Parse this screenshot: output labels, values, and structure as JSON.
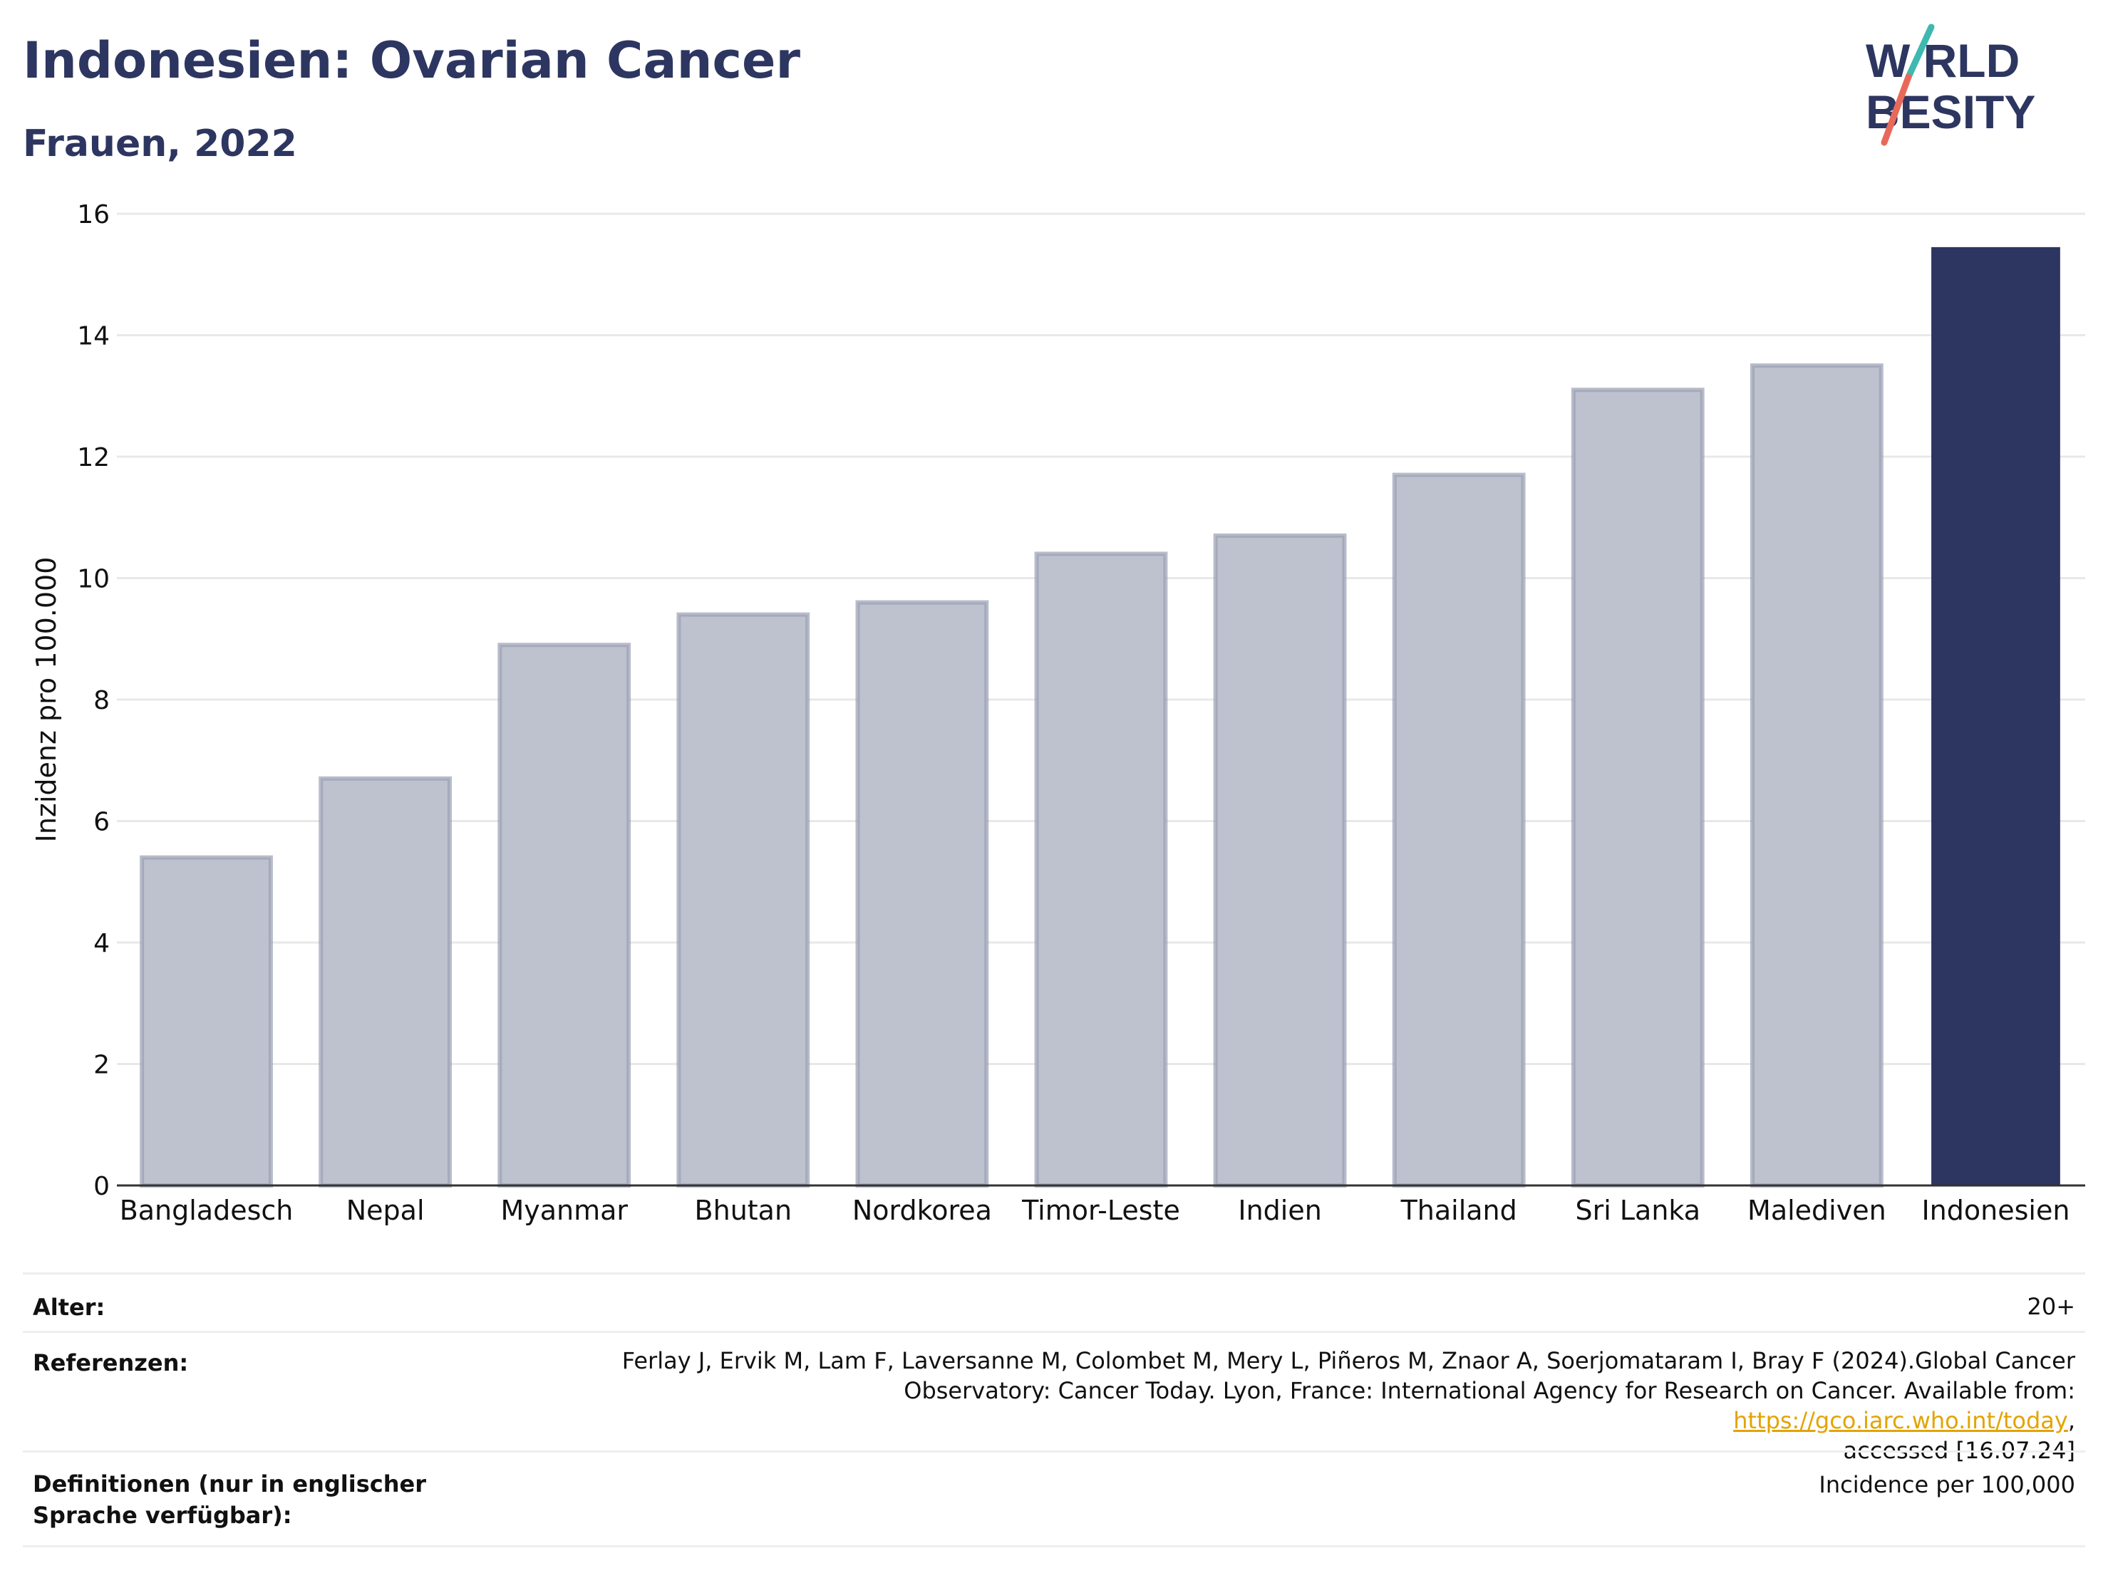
{
  "header": {
    "title": "Indonesien: Ovarian Cancer",
    "subtitle": "Frauen, 2022"
  },
  "logo": {
    "line1": "W RLD",
    "line2": "BESITY",
    "text": "WORLD OBESITY",
    "colors": {
      "text": "#2d3660",
      "slash_top": "#3fb8b0",
      "slash_bottom": "#e8695a"
    }
  },
  "chart_data": {
    "type": "bar",
    "categories": [
      "Bangladesch",
      "Nepal",
      "Myanmar",
      "Bhutan",
      "Nordkorea",
      "Timor-Leste",
      "Indien",
      "Thailand",
      "Sri Lanka",
      "Malediven",
      "Indonesien"
    ],
    "values": [
      5.4,
      6.7,
      8.9,
      9.4,
      9.6,
      10.4,
      10.7,
      11.7,
      13.1,
      13.5,
      15.45
    ],
    "highlight": "Indonesien",
    "ylabel": "Inzidenz pro 100.000",
    "xlabel": "",
    "ylim": [
      0,
      16
    ],
    "yticks": [
      0,
      2,
      4,
      6,
      8,
      10,
      12,
      14,
      16
    ],
    "grid": true,
    "colors": {
      "bar": "#bec1ce",
      "bar_border": "#9a9fb4",
      "highlight": "#2d3660",
      "grid": "#e8e8e8",
      "axis": "#333333"
    }
  },
  "info": {
    "age_label": "Alter:",
    "age_value": "20+",
    "refs_label": "Referenzen:",
    "refs_line1": "Ferlay J, Ervik M, Lam F, Laversanne M, Colombet M, Mery L, Piñeros M, Znaor A, Soerjomataram I, Bray F (2024).Global Cancer",
    "refs_line2_pre": "Observatory: Cancer Today. Lyon, France: International Agency for Research on Cancer. Available from: ",
    "refs_link": "https://gco.iarc.who.int/today",
    "refs_line2_post": ",",
    "refs_line3": "accessed [16.07.24]",
    "defs_label": "Definitionen (nur in englischer Sprache verfügbar):",
    "defs_value": "Incidence per 100,000"
  }
}
